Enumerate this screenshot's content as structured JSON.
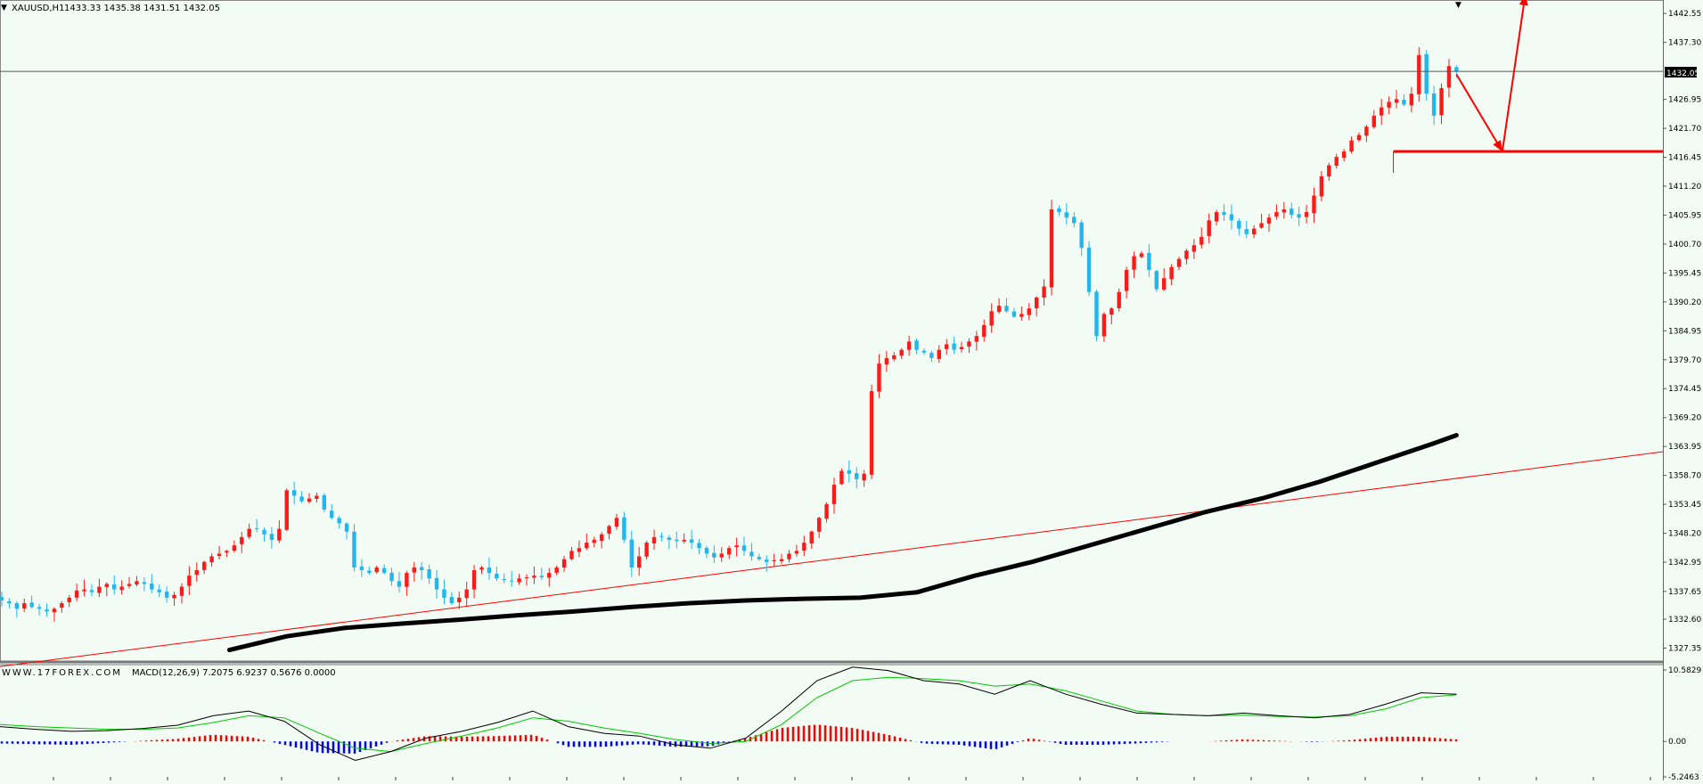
{
  "window": {
    "symbol_label": "XAUUSD,H1",
    "ohlc_label": "1433.33 1435.38 1431.51 1432.05"
  },
  "colors": {
    "background": "#f2fcf4",
    "bull_candle": "#ff1a1a",
    "bear_candle": "#22b5ee",
    "moving_average": "#000000",
    "trendline": "#ff0000",
    "macd_line": "#000000",
    "signal_line": "#00c800",
    "histogram_positive": "#ff0000",
    "histogram_negative": "#0000ff",
    "current_price_line": "#555555"
  },
  "chart_data": [
    {
      "type": "candlestick",
      "symbol": "XAUUSD",
      "timeframe": "H1",
      "current_price": 1432.05,
      "current_price_label": "1432.05",
      "ylim": [
        1325.0,
        1445.0
      ],
      "y_ticks": [
        1442.55,
        1437.3,
        1426.95,
        1421.7,
        1416.45,
        1411.2,
        1405.95,
        1400.7,
        1395.45,
        1390.2,
        1384.95,
        1379.7,
        1374.45,
        1369.2,
        1363.95,
        1358.7,
        1353.45,
        1348.2,
        1342.95,
        1337.65,
        1332.6,
        1327.35
      ],
      "y_tick_labels": [
        "1442.55",
        "1437.30",
        "1426.95",
        "1421.70",
        "1416.45",
        "1411.20",
        "1405.95",
        "1400.70",
        "1395.45",
        "1390.20",
        "1384.95",
        "1379.70",
        "1374.45",
        "1369.20",
        "1363.95",
        "1358.70",
        "1353.45",
        "1348.20",
        "1342.95",
        "1337.65",
        "1332.60",
        "1327.35"
      ],
      "support_level": 1417.5,
      "projection_path": [
        [
          254,
          1431.5
        ],
        [
          262,
          1417.5
        ],
        [
          266,
          1446.0
        ]
      ],
      "trendline": {
        "x": [
          0,
          290
        ],
        "y": [
          1324.0,
          1363.0
        ]
      },
      "moving_average": {
        "x": [
          40,
          50,
          60,
          70,
          80,
          90,
          100,
          110,
          120,
          130,
          140,
          150,
          160,
          170,
          180,
          190,
          200,
          210,
          220,
          230,
          240,
          250,
          254
        ],
        "y": [
          1327.0,
          1329.5,
          1331.0,
          1331.8,
          1332.5,
          1333.3,
          1334.0,
          1334.8,
          1335.5,
          1336.0,
          1336.3,
          1336.5,
          1337.5,
          1340.5,
          1343.0,
          1346.0,
          1349.0,
          1352.0,
          1354.5,
          1357.5,
          1361.0,
          1364.5,
          1366.0
        ]
      },
      "candles_close_path": [
        1336.0,
        1335.5,
        1334.5,
        1335.5,
        1334.8,
        1334.5,
        1334.0,
        1334.5,
        1335.5,
        1336.5,
        1337.8,
        1338.0,
        1337.5,
        1338.5,
        1339.0,
        1338.0,
        1338.5,
        1339.0,
        1339.5,
        1339.0,
        1338.0,
        1337.5,
        1336.5,
        1337.0,
        1338.5,
        1340.5,
        1341.5,
        1343.0,
        1344.0,
        1344.5,
        1345.0,
        1346.0,
        1347.5,
        1349.0,
        1349.0,
        1348.0,
        1347.0,
        1349.0,
        1356.0,
        1355.0,
        1354.0,
        1354.5,
        1355.0,
        1352.5,
        1351.0,
        1350.0,
        1348.5,
        1342.0,
        1341.5,
        1341.0,
        1342.0,
        1341.0,
        1339.5,
        1338.5,
        1341.0,
        1342.0,
        1341.5,
        1340.0,
        1338.0,
        1336.5,
        1335.5,
        1336.5,
        1338.0,
        1341.5,
        1342.0,
        1341.0,
        1340.0,
        1339.8,
        1339.5,
        1340.0,
        1340.2,
        1340.5,
        1340.2,
        1341.0,
        1342.0,
        1343.5,
        1345.0,
        1345.5,
        1346.5,
        1347.0,
        1348.0,
        1349.5,
        1351.0,
        1347.0,
        1342.0,
        1344.0,
        1346.5,
        1347.5,
        1347.5,
        1347.0,
        1346.8,
        1347.0,
        1346.5,
        1345.5,
        1344.5,
        1343.8,
        1344.5,
        1345.5,
        1346.0,
        1345.0,
        1344.0,
        1343.5,
        1343.0,
        1343.3,
        1343.5,
        1344.5,
        1345.0,
        1346.5,
        1348.5,
        1351.0,
        1353.5,
        1357.0,
        1359.5,
        1359.0,
        1358.0,
        1359.0,
        1374.0,
        1379.0,
        1380.0,
        1380.5,
        1381.5,
        1383.0,
        1381.5,
        1381.0,
        1380.0,
        1381.5,
        1382.5,
        1381.5,
        1382.0,
        1383.0,
        1384.0,
        1386.0,
        1388.5,
        1389.5,
        1388.5,
        1387.5,
        1388.0,
        1389.0,
        1391.0,
        1393.0,
        1407.0,
        1406.5,
        1405.5,
        1404.5,
        1400.0,
        1392.0,
        1384.0,
        1388.0,
        1389.0,
        1392.0,
        1396.0,
        1398.5,
        1399.0,
        1396.0,
        1392.5,
        1394.5,
        1396.5,
        1398.0,
        1399.5,
        1400.5,
        1402.0,
        1405.0,
        1406.5,
        1406.0,
        1405.0,
        1403.5,
        1402.5,
        1403.5,
        1404.5,
        1405.5,
        1406.5,
        1407.0,
        1406.0,
        1405.5,
        1406.5,
        1409.5,
        1413.0,
        1415.0,
        1416.5,
        1417.5,
        1419.5,
        1420.5,
        1422.0,
        1424.0,
        1425.5,
        1426.5,
        1427.0,
        1426.0,
        1428.0,
        1435.0,
        1428.0,
        1424.0,
        1429.0,
        1433.0,
        1432.05
      ],
      "x_range": [
        0,
        290
      ]
    },
    {
      "type": "line",
      "title": "MACD(12,26,9) 7.2075 6.9237 0.5676 0.0000",
      "watermark": "WWW.17FOREX.COM",
      "ylim": [
        -5.2463,
        10.5829
      ],
      "y_ticks": [
        10.5829,
        0.0,
        -5.2463
      ],
      "y_tick_labels": [
        "10.5829",
        "0.00",
        "-5.2463"
      ],
      "series": [
        {
          "values": [
            2.2,
            1.8,
            1.5,
            1.6,
            1.9,
            2.4,
            3.8,
            4.5,
            3.0,
            -0.5,
            -2.8,
            -1.5,
            0.5,
            1.5,
            2.8,
            4.5,
            2.2,
            1.2,
            0.8,
            -0.5,
            -1.0,
            0.5,
            4.5,
            9.0,
            11.0,
            10.5,
            9.0,
            8.5,
            7.0,
            9.0,
            7.0,
            5.5,
            4.2,
            4.0,
            3.8,
            4.2,
            3.8,
            3.5,
            4.0,
            5.5,
            7.2,
            7.0
          ]
        },
        {
          "values": [
            2.5,
            2.2,
            2.0,
            1.8,
            1.8,
            2.0,
            2.8,
            3.8,
            3.5,
            1.2,
            -1.0,
            -1.5,
            -0.3,
            0.8,
            2.0,
            3.5,
            3.0,
            2.0,
            1.2,
            0.3,
            -0.3,
            0.0,
            2.5,
            6.5,
            9.0,
            9.5,
            9.3,
            9.0,
            8.2,
            8.5,
            7.5,
            6.0,
            4.5,
            4.0,
            3.8,
            3.9,
            3.7,
            3.6,
            3.8,
            4.8,
            6.5,
            6.9
          ]
        },
        {
          "values": [
            -0.3,
            -0.4,
            -0.5,
            -0.2,
            0.1,
            0.4,
            1.0,
            0.7,
            -0.5,
            -1.7,
            -1.8,
            0.0,
            0.8,
            0.7,
            0.8,
            1.0,
            -0.8,
            -0.8,
            -0.4,
            -0.8,
            -0.7,
            0.5,
            2.0,
            2.5,
            2.0,
            1.0,
            -0.3,
            -0.5,
            -1.2,
            0.5,
            -0.5,
            -0.5,
            -0.3,
            0.0,
            0.0,
            0.3,
            0.1,
            -0.1,
            0.2,
            0.7,
            0.7,
            0.3
          ]
        }
      ]
    }
  ]
}
